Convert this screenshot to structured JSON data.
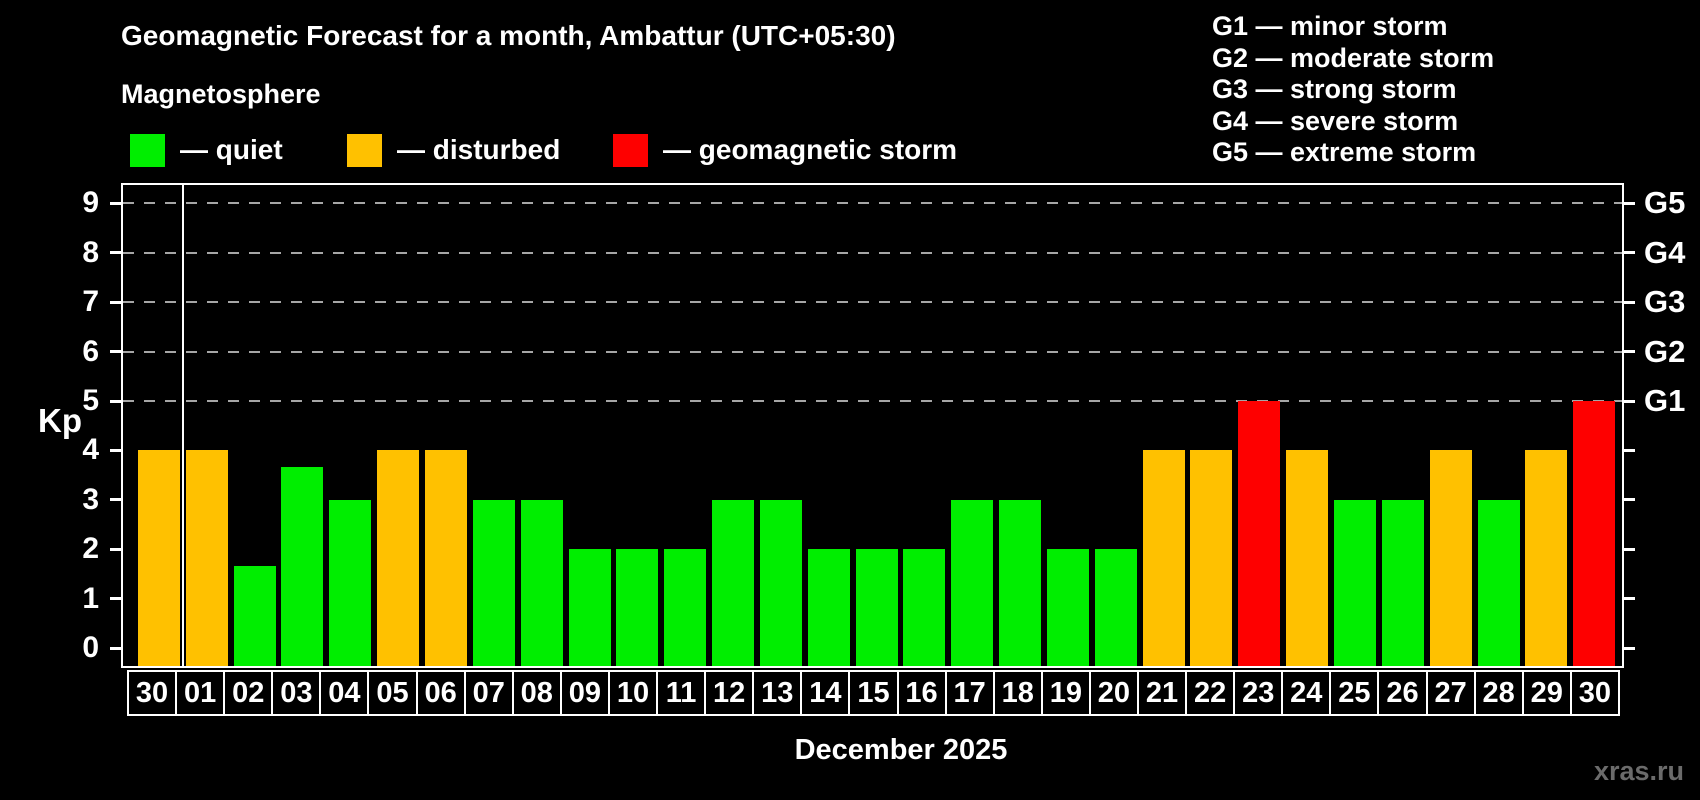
{
  "header": {
    "title": "Geomagnetic Forecast for a month, Ambattur (UTC+05:30)",
    "subtitle": "Magnetosphere"
  },
  "legend": {
    "items": [
      {
        "label": "— quiet",
        "status": "quiet",
        "color": "#00ee00"
      },
      {
        "label": "— disturbed",
        "status": "disturbed",
        "color": "#ffc100"
      },
      {
        "label": "— geomagnetic storm",
        "status": "storm",
        "color": "#fe0000"
      }
    ]
  },
  "g_legend": [
    "G1 — minor storm",
    "G2 — moderate storm",
    "G3 — strong storm",
    "G4 — severe storm",
    "G5 — extreme storm"
  ],
  "footer": {
    "month_label": "December 2025",
    "watermark": "xras.ru"
  },
  "chart_data": {
    "type": "bar",
    "title": "Geomagnetic Forecast for a month, Ambattur (UTC+05:30)",
    "xlabel": "December 2025",
    "ylabel": "Kp",
    "ylim": [
      0,
      9
    ],
    "yticks": [
      0,
      1,
      2,
      3,
      4,
      5,
      6,
      7,
      8,
      9
    ],
    "gridlines": [
      5,
      6,
      7,
      8,
      9
    ],
    "grid_style": "dashed horizontal lines at storm levels only",
    "legend_position": "top-left",
    "categories": [
      "30",
      "01",
      "02",
      "03",
      "04",
      "05",
      "06",
      "07",
      "08",
      "09",
      "10",
      "11",
      "12",
      "13",
      "14",
      "15",
      "16",
      "17",
      "18",
      "19",
      "20",
      "21",
      "22",
      "23",
      "24",
      "25",
      "26",
      "27",
      "28",
      "29",
      "30"
    ],
    "values": [
      4,
      4,
      1.67,
      3.67,
      3,
      4,
      4,
      3,
      3,
      2,
      2,
      2,
      3,
      3,
      2,
      2,
      2,
      3,
      3,
      2,
      2,
      4,
      4,
      5,
      4,
      3,
      3,
      4,
      3,
      4,
      5
    ],
    "statuses": [
      "disturbed",
      "disturbed",
      "quiet",
      "quiet",
      "quiet",
      "disturbed",
      "disturbed",
      "quiet",
      "quiet",
      "quiet",
      "quiet",
      "quiet",
      "quiet",
      "quiet",
      "quiet",
      "quiet",
      "quiet",
      "quiet",
      "quiet",
      "quiet",
      "quiet",
      "disturbed",
      "disturbed",
      "storm",
      "disturbed",
      "quiet",
      "quiet",
      "disturbed",
      "quiet",
      "disturbed",
      "storm"
    ],
    "colors": {
      "quiet": "#00ee00",
      "disturbed": "#ffc100",
      "storm": "#fe0000"
    },
    "right_axis": [
      {
        "value": 5,
        "label": "G1"
      },
      {
        "value": 6,
        "label": "G2"
      },
      {
        "value": 7,
        "label": "G3"
      },
      {
        "value": 8,
        "label": "G4"
      },
      {
        "value": 9,
        "label": "G5"
      }
    ],
    "month_separator_after": 0
  }
}
